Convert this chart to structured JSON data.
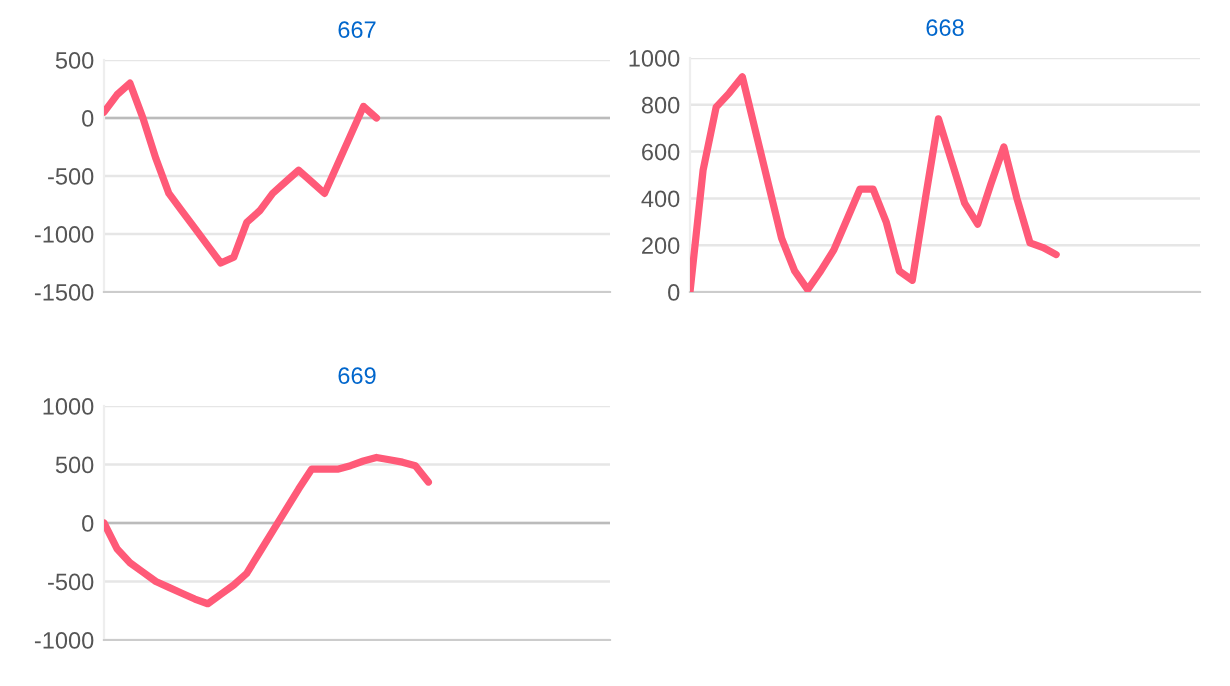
{
  "chart_data": [
    {
      "type": "line",
      "title": "667",
      "tick_labels": "y",
      "grid": "y",
      "ylim": [
        -1500,
        500
      ],
      "yticks": [
        -1500,
        -1000,
        -500,
        0,
        500
      ],
      "categories": [
        null,
        null,
        null,
        null,
        null,
        null,
        null,
        null,
        null,
        null,
        null,
        null,
        null,
        null,
        null,
        null,
        null,
        null,
        null,
        null,
        null,
        null,
        null,
        null,
        null,
        null,
        null,
        null,
        null,
        null,
        null,
        null,
        null,
        null,
        null,
        null,
        null,
        null,
        null,
        null
      ],
      "series": [
        {
          "color": "#ff5a78",
          "values": [
            50,
            200,
            300,
            0,
            -350,
            -650,
            -800,
            -950,
            -1100,
            -1250,
            -1200,
            -900,
            -800,
            -650,
            -550,
            -450,
            -550,
            -650,
            -400,
            -150,
            100,
            0,
            null,
            null,
            null,
            null,
            null,
            null,
            null,
            null,
            null,
            null,
            null,
            null,
            null,
            null,
            null,
            null,
            null,
            null
          ]
        }
      ]
    },
    {
      "type": "line",
      "title": "668",
      "tick_labels": "y",
      "grid": "y",
      "ylim": [
        0,
        1000
      ],
      "yticks": [
        0,
        200,
        400,
        600,
        800,
        1000
      ],
      "categories": [
        null,
        null,
        null,
        null,
        null,
        null,
        null,
        null,
        null,
        null,
        null,
        null,
        null,
        null,
        null,
        null,
        null,
        null,
        null,
        null,
        null,
        null,
        null,
        null,
        null,
        null,
        null,
        null,
        null,
        null,
        null,
        null,
        null,
        null,
        null,
        null,
        null,
        null,
        null,
        null
      ],
      "series": [
        {
          "color": "#ff5a78",
          "values": [
            0,
            520,
            790,
            850,
            920,
            690,
            460,
            230,
            90,
            10,
            90,
            180,
            310,
            440,
            440,
            300,
            90,
            50,
            400,
            740,
            560,
            380,
            290,
            460,
            620,
            400,
            210,
            190,
            160,
            null,
            null,
            null,
            null,
            null,
            null,
            null,
            null,
            null,
            null,
            null
          ]
        }
      ]
    },
    {
      "type": "line",
      "title": "669",
      "tick_labels": "y",
      "grid": "y",
      "ylim": [
        -1000,
        1000
      ],
      "yticks": [
        -1000,
        -500,
        0,
        500,
        1000
      ],
      "categories": [
        null,
        null,
        null,
        null,
        null,
        null,
        null,
        null,
        null,
        null,
        null,
        null,
        null,
        null,
        null,
        null,
        null,
        null,
        null,
        null,
        null,
        null,
        null,
        null,
        null,
        null,
        null,
        null,
        null,
        null,
        null,
        null,
        null,
        null,
        null,
        null,
        null,
        null,
        null,
        null
      ],
      "series": [
        {
          "color": "#ff5a78",
          "values": [
            0,
            -220,
            -340,
            -420,
            -500,
            -550,
            -600,
            -650,
            -690,
            -610,
            -530,
            -430,
            -250,
            -70,
            110,
            290,
            460,
            460,
            460,
            490,
            530,
            560,
            540,
            520,
            490,
            350,
            null,
            null,
            null,
            null,
            null,
            null,
            null,
            null,
            null,
            null,
            null,
            null,
            null,
            null
          ]
        }
      ]
    }
  ]
}
